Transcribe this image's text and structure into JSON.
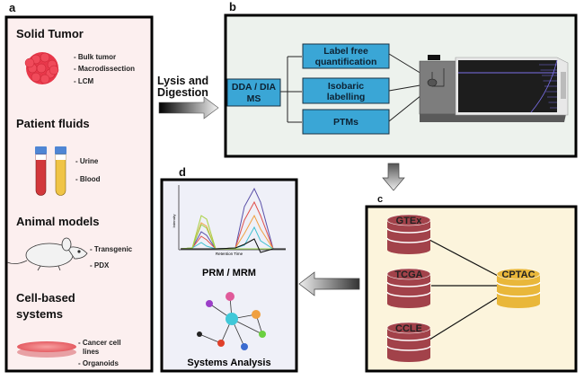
{
  "panels": {
    "a": {
      "label": "a",
      "sections": [
        {
          "title": "Solid Tumor",
          "items": [
            "- Bulk tumor",
            "- Macrodissection",
            "- LCM"
          ]
        },
        {
          "title": "Patient fluids",
          "items": [
            "- Urine",
            "- Blood"
          ]
        },
        {
          "title": "Animal models",
          "items": [
            "- Transgenic",
            "- PDX"
          ]
        },
        {
          "title_lines": [
            "Cell-based",
            "systems"
          ],
          "items": [
            "- Cancer cell",
            "lines",
            "- Organoids"
          ]
        }
      ]
    },
    "arrow_a_b": {
      "lines": [
        "Lysis and",
        "Digestion"
      ]
    },
    "b": {
      "label": "b",
      "source": [
        "DDA / DIA",
        "MS"
      ],
      "methods": [
        {
          "lines": [
            "Label free",
            "quantification"
          ]
        },
        {
          "lines": [
            "Isobaric",
            "labelling"
          ]
        },
        {
          "lines": [
            "PTMs"
          ]
        }
      ]
    },
    "c": {
      "label": "c",
      "databases": [
        "GTEx",
        "TCGA",
        "CCLE"
      ],
      "target": "CPTAC"
    },
    "d": {
      "label": "d",
      "y_axis": "Intensity",
      "x_axis": "Retention Time",
      "title1": "PRM / MRM",
      "title2": "Systems Analysis"
    }
  },
  "colors": {
    "panel_a_bg": "#fcefef",
    "panel_b_bg": "#edf2ed",
    "panel_c_bg": "#fcf4dc",
    "panel_d_bg": "#eff0f8",
    "method_box": "#3aa6d6",
    "db_red": "#a2424a",
    "db_gold": "#e9b73a"
  }
}
